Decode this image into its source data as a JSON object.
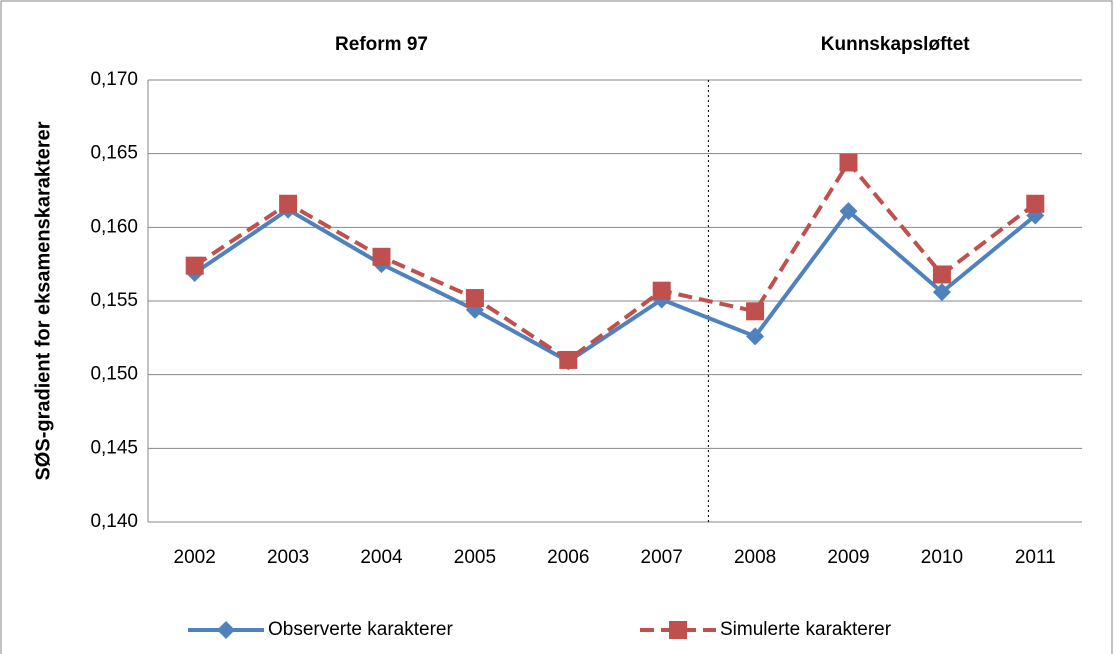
{
  "chart_data": {
    "type": "line",
    "y_label": "SØS-gradient for eksamenskarakterer",
    "annotations": [
      "Reform 97",
      "Kunnskapsløftet"
    ],
    "categories": [
      "2002",
      "2003",
      "2004",
      "2005",
      "2006",
      "2007",
      "2008",
      "2009",
      "2010",
      "2011"
    ],
    "series": [
      {
        "name": "Observerte karakterer",
        "color": "#4f81bd",
        "values": [
          0.1569,
          0.1612,
          0.1575,
          0.1544,
          0.1509,
          0.1551,
          0.1526,
          0.1611,
          0.1556,
          0.1608
        ]
      },
      {
        "name": "Simulerte karakterer",
        "color": "#c0504d",
        "values": [
          0.1574,
          0.1616,
          0.158,
          0.1552,
          0.151,
          0.1557,
          0.1543,
          0.1644,
          0.1568,
          0.1616
        ]
      }
    ],
    "ylim": [
      0.14,
      0.17
    ],
    "yticks": [
      {
        "value": 0.14,
        "label": "0,140"
      },
      {
        "value": 0.145,
        "label": "0,145"
      },
      {
        "value": 0.15,
        "label": "0,150"
      },
      {
        "value": 0.155,
        "label": "0,155"
      },
      {
        "value": 0.16,
        "label": "0,160"
      },
      {
        "value": 0.165,
        "label": "0,165"
      },
      {
        "value": 0.17,
        "label": "0,170"
      }
    ],
    "grid": true,
    "legend": "bottom"
  }
}
